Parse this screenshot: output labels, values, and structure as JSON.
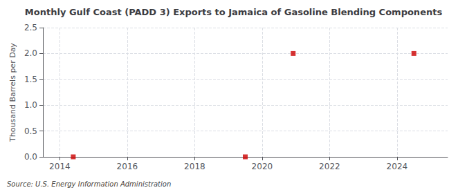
{
  "chart_data": {
    "type": "scatter",
    "title": "Monthly Gulf Coast (PADD 3) Exports to Jamaica of Gasoline Blending Components",
    "ylabel": "Thousand Barrels per Day",
    "annotations": [
      "Source: U.S. Energy Information Administration"
    ],
    "x": [
      2014.4,
      2019.5,
      2020.92,
      2024.5
    ],
    "values": [
      0.0,
      0.0,
      2.0,
      2.0
    ],
    "color": "#cc0000",
    "marker": "square",
    "xlim": [
      2013.5,
      2025.5
    ],
    "xticks": [
      2014,
      2016,
      2018,
      2020,
      2022,
      2024
    ],
    "ylim": [
      0.0,
      2.5
    ],
    "yticks": [
      {
        "value": 0.0,
        "label": "0.0"
      },
      0.5,
      {
        "value": 1.0,
        "label": "1.0"
      },
      1.5,
      {
        "value": 2.0,
        "label": "2.0"
      },
      2.5
    ],
    "grid": true
  }
}
